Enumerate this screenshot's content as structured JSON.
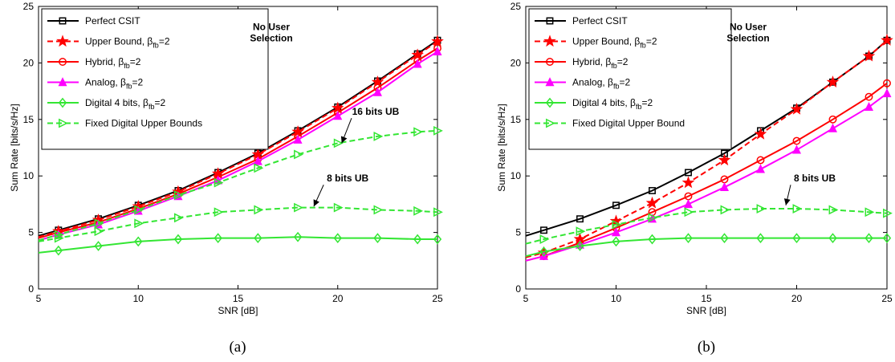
{
  "chart_data": [
    {
      "type": "line",
      "caption": "(a)",
      "xlabel": "SNR [dB]",
      "ylabel": "Sum Rate [bits/s/Hz]",
      "xlim": [
        5,
        25
      ],
      "ylim": [
        0,
        25
      ],
      "xticks": [
        5,
        10,
        15,
        20,
        25
      ],
      "yticks": [
        0,
        5,
        10,
        15,
        20,
        25
      ],
      "grid": false,
      "legend_position": "top-left",
      "annotations": [
        {
          "text": "No User",
          "x": 23,
          "y": 22.9
        },
        {
          "text": "Selection",
          "x": 23,
          "y": 21.9
        },
        {
          "text": "16 bits UB",
          "x": 21.9,
          "y": 15.4,
          "arrow_to": [
            20.2,
            12.9
          ]
        },
        {
          "text": "8 bits UB",
          "x": 20.5,
          "y": 9.5,
          "arrow_to": [
            18.8,
            7.3
          ]
        }
      ],
      "series": [
        {
          "name": "Perfect CSIT",
          "color": "#000000",
          "dash": "solid",
          "marker": "square",
          "x": [
            5,
            6,
            8,
            10,
            12,
            14,
            16,
            18,
            20,
            22,
            24,
            25
          ],
          "y": [
            4.7,
            5.2,
            6.2,
            7.4,
            8.7,
            10.3,
            12.0,
            14.0,
            16.1,
            18.4,
            20.8,
            22.0
          ]
        },
        {
          "name": "Upper Bound, β_fb=2",
          "color": "#ff0000",
          "dash": "dashed",
          "marker": "star",
          "x": [
            5,
            6,
            8,
            10,
            12,
            14,
            16,
            18,
            20,
            22,
            24,
            25
          ],
          "y": [
            4.6,
            5.1,
            6.1,
            7.3,
            8.6,
            10.2,
            11.9,
            13.9,
            16.0,
            18.3,
            20.7,
            21.9
          ]
        },
        {
          "name": "Hybrid, β_fb=2",
          "color": "#ff0000",
          "dash": "solid",
          "marker": "circle",
          "x": [
            5,
            6,
            8,
            10,
            12,
            14,
            16,
            18,
            20,
            22,
            24,
            25
          ],
          "y": [
            4.5,
            5.0,
            5.9,
            7.1,
            8.4,
            9.9,
            11.5,
            13.5,
            15.6,
            17.8,
            20.2,
            21.3
          ]
        },
        {
          "name": "Analog, β_fb=2",
          "color": "#ff00ff",
          "dash": "solid",
          "marker": "triangle-up",
          "x": [
            5,
            6,
            8,
            10,
            12,
            14,
            16,
            18,
            20,
            22,
            24,
            25
          ],
          "y": [
            4.3,
            4.8,
            5.7,
            6.9,
            8.2,
            9.6,
            11.3,
            13.2,
            15.3,
            17.4,
            19.9,
            21.0
          ]
        },
        {
          "name": "Digital 4 bits, β_fb=2",
          "color": "#33e633",
          "dash": "solid",
          "marker": "diamond",
          "x": [
            5,
            6,
            8,
            10,
            12,
            14,
            16,
            18,
            20,
            22,
            24,
            25
          ],
          "y": [
            3.2,
            3.4,
            3.8,
            4.2,
            4.4,
            4.5,
            4.5,
            4.6,
            4.5,
            4.5,
            4.4,
            4.4
          ]
        },
        {
          "name": "Fixed Digital Upper Bounds",
          "color": "#33e633",
          "dash": "dashed",
          "marker": "triangle-right",
          "x": [
            5,
            6,
            8,
            10,
            12,
            14,
            16,
            18,
            20,
            22,
            24,
            25
          ],
          "y": [
            4.2,
            4.5,
            5.1,
            5.8,
            6.3,
            6.8,
            7.0,
            7.2,
            7.2,
            7.0,
            6.9,
            6.8
          ]
        },
        {
          "name": "",
          "color": "#33e633",
          "dash": "dashed",
          "marker": "triangle-right",
          "x": [
            5,
            6,
            8,
            10,
            12,
            14,
            16,
            18,
            20,
            22,
            24,
            25
          ],
          "y": [
            4.3,
            4.8,
            5.8,
            7.0,
            8.3,
            9.4,
            10.7,
            11.9,
            12.9,
            13.5,
            13.9,
            14.0
          ]
        }
      ]
    },
    {
      "type": "line",
      "caption": "(b)",
      "xlabel": "SNR [dB]",
      "ylabel": "Sum Rate [bits/s/Hz]",
      "xlim": [
        5,
        25
      ],
      "ylim": [
        0,
        25
      ],
      "xticks": [
        5,
        10,
        15,
        20,
        25
      ],
      "yticks": [
        0,
        5,
        10,
        15,
        20,
        25
      ],
      "grid": false,
      "legend_position": "top-left",
      "annotations": [
        {
          "text": "No User",
          "x": 23,
          "y": 22.9
        },
        {
          "text": "Selection",
          "x": 23,
          "y": 21.9
        },
        {
          "text": "8 bits UB",
          "x": 21.0,
          "y": 9.5,
          "arrow_to": [
            19.4,
            7.4
          ]
        }
      ],
      "series": [
        {
          "name": "Perfect CSIT",
          "color": "#000000",
          "dash": "solid",
          "marker": "square",
          "x": [
            5,
            6,
            8,
            10,
            12,
            14,
            16,
            18,
            20,
            22,
            24,
            25
          ],
          "y": [
            4.7,
            5.2,
            6.2,
            7.4,
            8.7,
            10.3,
            12.0,
            14.0,
            16.0,
            18.3,
            20.6,
            22.0
          ]
        },
        {
          "name": "Upper Bound, β_fb=2",
          "color": "#ff0000",
          "dash": "dashed",
          "marker": "star",
          "x": [
            5,
            6,
            8,
            10,
            12,
            14,
            16,
            18,
            20,
            22,
            24,
            25
          ],
          "y": [
            2.8,
            3.2,
            4.4,
            6.0,
            7.6,
            9.4,
            11.4,
            13.7,
            15.9,
            18.3,
            20.6,
            22.0
          ]
        },
        {
          "name": "Hybrid, β_fb=2",
          "color": "#ff0000",
          "dash": "solid",
          "marker": "circle",
          "x": [
            5,
            6,
            8,
            10,
            12,
            14,
            16,
            18,
            20,
            22,
            24,
            25
          ],
          "y": [
            2.5,
            2.9,
            4.1,
            5.4,
            6.8,
            8.2,
            9.7,
            11.4,
            13.1,
            15.0,
            17.0,
            18.2
          ]
        },
        {
          "name": "Analog, β_fb=2",
          "color": "#ff00ff",
          "dash": "solid",
          "marker": "triangle-up",
          "x": [
            5,
            6,
            8,
            10,
            12,
            14,
            16,
            18,
            20,
            22,
            24,
            25
          ],
          "y": [
            2.5,
            2.9,
            3.9,
            5.0,
            6.2,
            7.5,
            9.0,
            10.6,
            12.3,
            14.2,
            16.1,
            17.3
          ]
        },
        {
          "name": "Digital 4 bits, β_fb=2",
          "color": "#33e633",
          "dash": "solid",
          "marker": "diamond",
          "x": [
            5,
            6,
            8,
            10,
            12,
            14,
            16,
            18,
            20,
            22,
            24,
            25
          ],
          "y": [
            2.9,
            3.3,
            3.8,
            4.2,
            4.4,
            4.5,
            4.5,
            4.5,
            4.5,
            4.5,
            4.5,
            4.5
          ]
        },
        {
          "name": "Fixed Digital Upper Bound",
          "color": "#33e633",
          "dash": "dashed",
          "marker": "triangle-right",
          "x": [
            5,
            6,
            8,
            10,
            12,
            14,
            16,
            18,
            20,
            22,
            24,
            25
          ],
          "y": [
            4.0,
            4.4,
            5.1,
            5.7,
            6.3,
            6.8,
            7.0,
            7.1,
            7.1,
            7.0,
            6.8,
            6.7
          ]
        }
      ]
    }
  ]
}
